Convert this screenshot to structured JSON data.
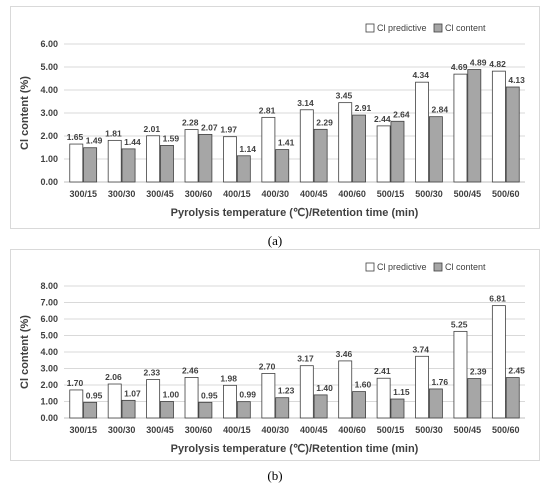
{
  "chart_data": [
    {
      "type": "bar",
      "ylabel": "Cl content (%)",
      "xlabel": "Pyrolysis temperature (℃)/Retention time (min)",
      "categories": [
        "300/15",
        "300/30",
        "300/45",
        "300/60",
        "400/15",
        "400/30",
        "400/45",
        "400/60",
        "500/15",
        "500/30",
        "500/45",
        "500/60"
      ],
      "ylim": [
        0,
        6
      ],
      "yticks": [
        "0.00",
        "1.00",
        "2.00",
        "3.00",
        "4.00",
        "5.00",
        "6.00"
      ],
      "grid": true,
      "legend_position": "top-right",
      "series": [
        {
          "name": "Cl predictive",
          "color": "#ffffff",
          "values": [
            1.65,
            1.81,
            2.01,
            2.28,
            1.97,
            2.81,
            3.14,
            3.45,
            2.44,
            4.34,
            4.69,
            4.82
          ],
          "labels": [
            "1.65",
            "1.81",
            "2.01",
            "2.28",
            "1.97",
            "2.81",
            "3.14",
            "3.45",
            "2.44",
            "4.34",
            "4.69",
            "4.82"
          ]
        },
        {
          "name": "Cl content",
          "color": "#a6a6a6",
          "values": [
            1.49,
            1.44,
            1.59,
            2.07,
            1.14,
            1.41,
            2.29,
            2.91,
            2.64,
            2.84,
            4.89,
            4.13
          ],
          "labels": [
            "1.49",
            "1.44",
            "1.59",
            "2.07",
            "1.14",
            "1.41",
            "2.29",
            "2.91",
            "2.64",
            "2.84",
            "4.89",
            "4.13"
          ]
        }
      ]
    },
    {
      "type": "bar",
      "ylabel": "Cl content (%)",
      "xlabel": "Pyrolysis temperature (℃)/Retention time (min)",
      "categories": [
        "300/15",
        "300/30",
        "300/45",
        "300/60",
        "400/15",
        "400/30",
        "400/45",
        "400/60",
        "500/15",
        "500/30",
        "500/45",
        "500/60"
      ],
      "ylim": [
        0,
        8
      ],
      "yticks": [
        "0.00",
        "1.00",
        "2.00",
        "3.00",
        "4.00",
        "5.00",
        "6.00",
        "7.00",
        "8.00"
      ],
      "grid": true,
      "legend_position": "top-right",
      "series": [
        {
          "name": "Cl predictive",
          "color": "#ffffff",
          "values": [
            1.7,
            2.06,
            2.33,
            2.46,
            1.98,
            2.7,
            3.17,
            3.46,
            2.41,
            3.74,
            5.25,
            6.81
          ],
          "labels": [
            "1.70",
            "2.06",
            "2.33",
            "2.46",
            "1.98",
            "2.70",
            "3.17",
            "3.46",
            "2.41",
            "3.74",
            "5.25",
            "6.81"
          ]
        },
        {
          "name": "Cl content",
          "color": "#a6a6a6",
          "values": [
            0.95,
            1.07,
            1.0,
            0.95,
            0.99,
            1.23,
            1.4,
            1.6,
            1.15,
            1.76,
            2.39,
            2.45
          ],
          "labels": [
            "0.95",
            "1.07",
            "1.00",
            "0.95",
            "0.99",
            "1.23",
            "1.40",
            "1.60",
            "1.15",
            "1.76",
            "2.39",
            "2.45"
          ]
        }
      ]
    }
  ],
  "captions": {
    "a": "(a)",
    "b": "(b)"
  }
}
